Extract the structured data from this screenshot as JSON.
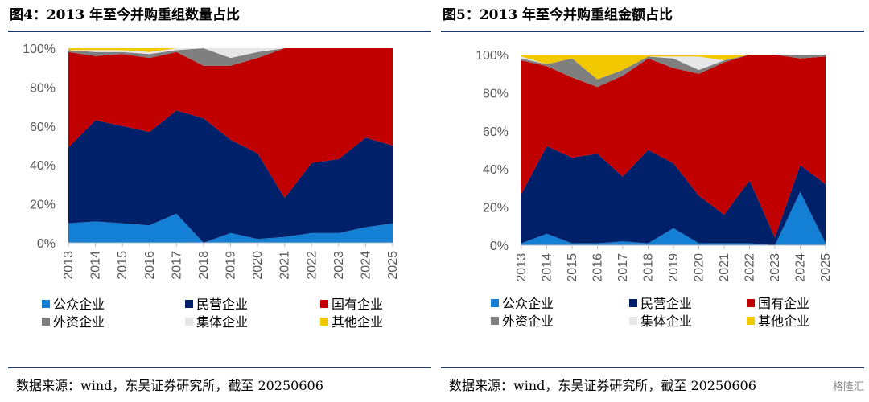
{
  "colors": {
    "公众企业": "#1380d6",
    "民营企业": "#00206a",
    "国有企业": "#c00000",
    "外资企业": "#7f7f7f",
    "集体企业": "#e7e7e7",
    "其他企业": "#f2c800"
  },
  "watermark": "格隆汇",
  "chart_data": [
    {
      "type": "area",
      "stacked": true,
      "title": "图4：2013 年至今并购重组数量占比",
      "source": "数据来源：wind，东吴证券研究所，截至 20250606",
      "x": [
        "2013",
        "2014",
        "2015",
        "2016",
        "2017",
        "2018",
        "2019",
        "2020",
        "2021",
        "2022",
        "2023",
        "2024",
        "2025"
      ],
      "ylim": [
        0,
        100
      ],
      "yticks": [
        "0%",
        "20%",
        "40%",
        "60%",
        "80%",
        "100%"
      ],
      "legend_position": "bottom",
      "series": [
        {
          "name": "公众企业",
          "values": [
            10,
            11,
            10,
            9,
            15,
            0,
            5,
            2,
            3,
            5,
            5,
            8,
            10
          ]
        },
        {
          "name": "民营企业",
          "values": [
            39,
            52,
            50,
            48,
            53,
            64,
            48,
            44,
            20,
            36,
            38,
            46,
            40
          ]
        },
        {
          "name": "国有企业",
          "values": [
            49,
            33,
            37,
            38,
            30,
            27,
            38,
            49,
            77,
            59,
            57,
            46,
            50
          ]
        },
        {
          "name": "外资企业",
          "values": [
            1,
            2,
            1,
            2,
            1,
            9,
            4,
            3,
            0,
            0,
            0,
            0,
            0
          ]
        },
        {
          "name": "集体企业",
          "values": [
            0,
            1,
            1,
            1,
            1,
            0,
            5,
            2,
            0,
            0,
            0,
            0,
            0
          ]
        },
        {
          "name": "其他企业",
          "values": [
            1,
            1,
            1,
            2,
            0,
            0,
            0,
            0,
            0,
            0,
            0,
            0,
            0
          ]
        }
      ]
    },
    {
      "type": "area",
      "stacked": true,
      "title": "图5：2013 年至今并购重组金额占比",
      "source": "数据来源：wind，东吴证券研究所，截至 20250606",
      "x": [
        "2013",
        "2014",
        "2015",
        "2016",
        "2017",
        "2018",
        "2019",
        "2020",
        "2021",
        "2022",
        "2023",
        "2024",
        "2025"
      ],
      "ylim": [
        0,
        100
      ],
      "yticks": [
        "0%",
        "20%",
        "40%",
        "60%",
        "80%",
        "100%"
      ],
      "legend_position": "bottom",
      "series": [
        {
          "name": "公众企业",
          "values": [
            1,
            6,
            1,
            1,
            2,
            1,
            9,
            1,
            1,
            1,
            0,
            28,
            1
          ]
        },
        {
          "name": "民营企业",
          "values": [
            26,
            46,
            45,
            47,
            34,
            49,
            34,
            25,
            15,
            33,
            4,
            14,
            31
          ]
        },
        {
          "name": "国有企业",
          "values": [
            70,
            42,
            42,
            35,
            53,
            48,
            50,
            64,
            80,
            66,
            96,
            56,
            67
          ]
        },
        {
          "name": "外资企业",
          "values": [
            1,
            1,
            10,
            4,
            3,
            1,
            5,
            2,
            1,
            0,
            0,
            2,
            1
          ]
        },
        {
          "name": "集体企业",
          "values": [
            1,
            0,
            0,
            0,
            0,
            0,
            1,
            7,
            0,
            0,
            0,
            0,
            0
          ]
        },
        {
          "name": "其他企业",
          "values": [
            1,
            5,
            2,
            13,
            8,
            1,
            1,
            1,
            3,
            0,
            0,
            0,
            0
          ]
        }
      ]
    }
  ]
}
